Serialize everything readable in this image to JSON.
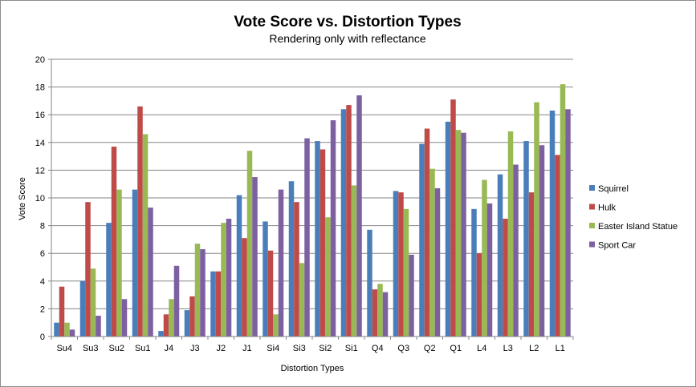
{
  "chart_data": {
    "type": "bar",
    "title": "Vote Score vs. Distortion Types",
    "subtitle": "Rendering only with reflectance",
    "xlabel": "Distortion Types",
    "ylabel": "Vote Score",
    "ylim": [
      0,
      20
    ],
    "yticks": [
      0,
      2,
      4,
      6,
      8,
      10,
      12,
      14,
      16,
      18,
      20
    ],
    "grid": true,
    "legend_position": "right",
    "categories": [
      "Su4",
      "Su3",
      "Su2",
      "Su1",
      "J4",
      "J3",
      "J2",
      "J1",
      "Si4",
      "Si3",
      "Si2",
      "Si1",
      "Q4",
      "Q3",
      "Q2",
      "Q1",
      "L4",
      "L3",
      "L2",
      "L1"
    ],
    "series": [
      {
        "name": "Squirrel",
        "color": "#4a7ebb",
        "values": [
          1.0,
          4.0,
          8.2,
          10.6,
          0.4,
          1.9,
          4.7,
          10.2,
          8.3,
          11.2,
          14.1,
          16.4,
          7.7,
          10.5,
          13.9,
          15.5,
          9.2,
          11.7,
          14.1,
          16.3
        ]
      },
      {
        "name": "Hulk",
        "color": "#be4b48",
        "values": [
          3.6,
          9.7,
          13.7,
          16.6,
          1.6,
          2.9,
          4.7,
          7.1,
          6.2,
          9.7,
          13.5,
          16.7,
          3.4,
          10.4,
          15.0,
          17.1,
          6.0,
          8.5,
          10.4,
          13.1
        ]
      },
      {
        "name": "Easter Island Statue",
        "color": "#98b954",
        "values": [
          1.0,
          4.9,
          10.6,
          14.6,
          2.7,
          6.7,
          8.2,
          13.4,
          1.6,
          5.3,
          8.6,
          10.9,
          3.8,
          9.2,
          12.1,
          14.9,
          11.3,
          14.8,
          16.9,
          18.2
        ]
      },
      {
        "name": "Sport Car",
        "color": "#7d60a0",
        "values": [
          0.5,
          1.5,
          2.7,
          9.3,
          5.1,
          6.3,
          8.5,
          11.5,
          10.6,
          14.3,
          15.6,
          17.4,
          3.2,
          5.9,
          10.7,
          14.7,
          9.6,
          12.4,
          13.8,
          16.4
        ]
      }
    ]
  }
}
